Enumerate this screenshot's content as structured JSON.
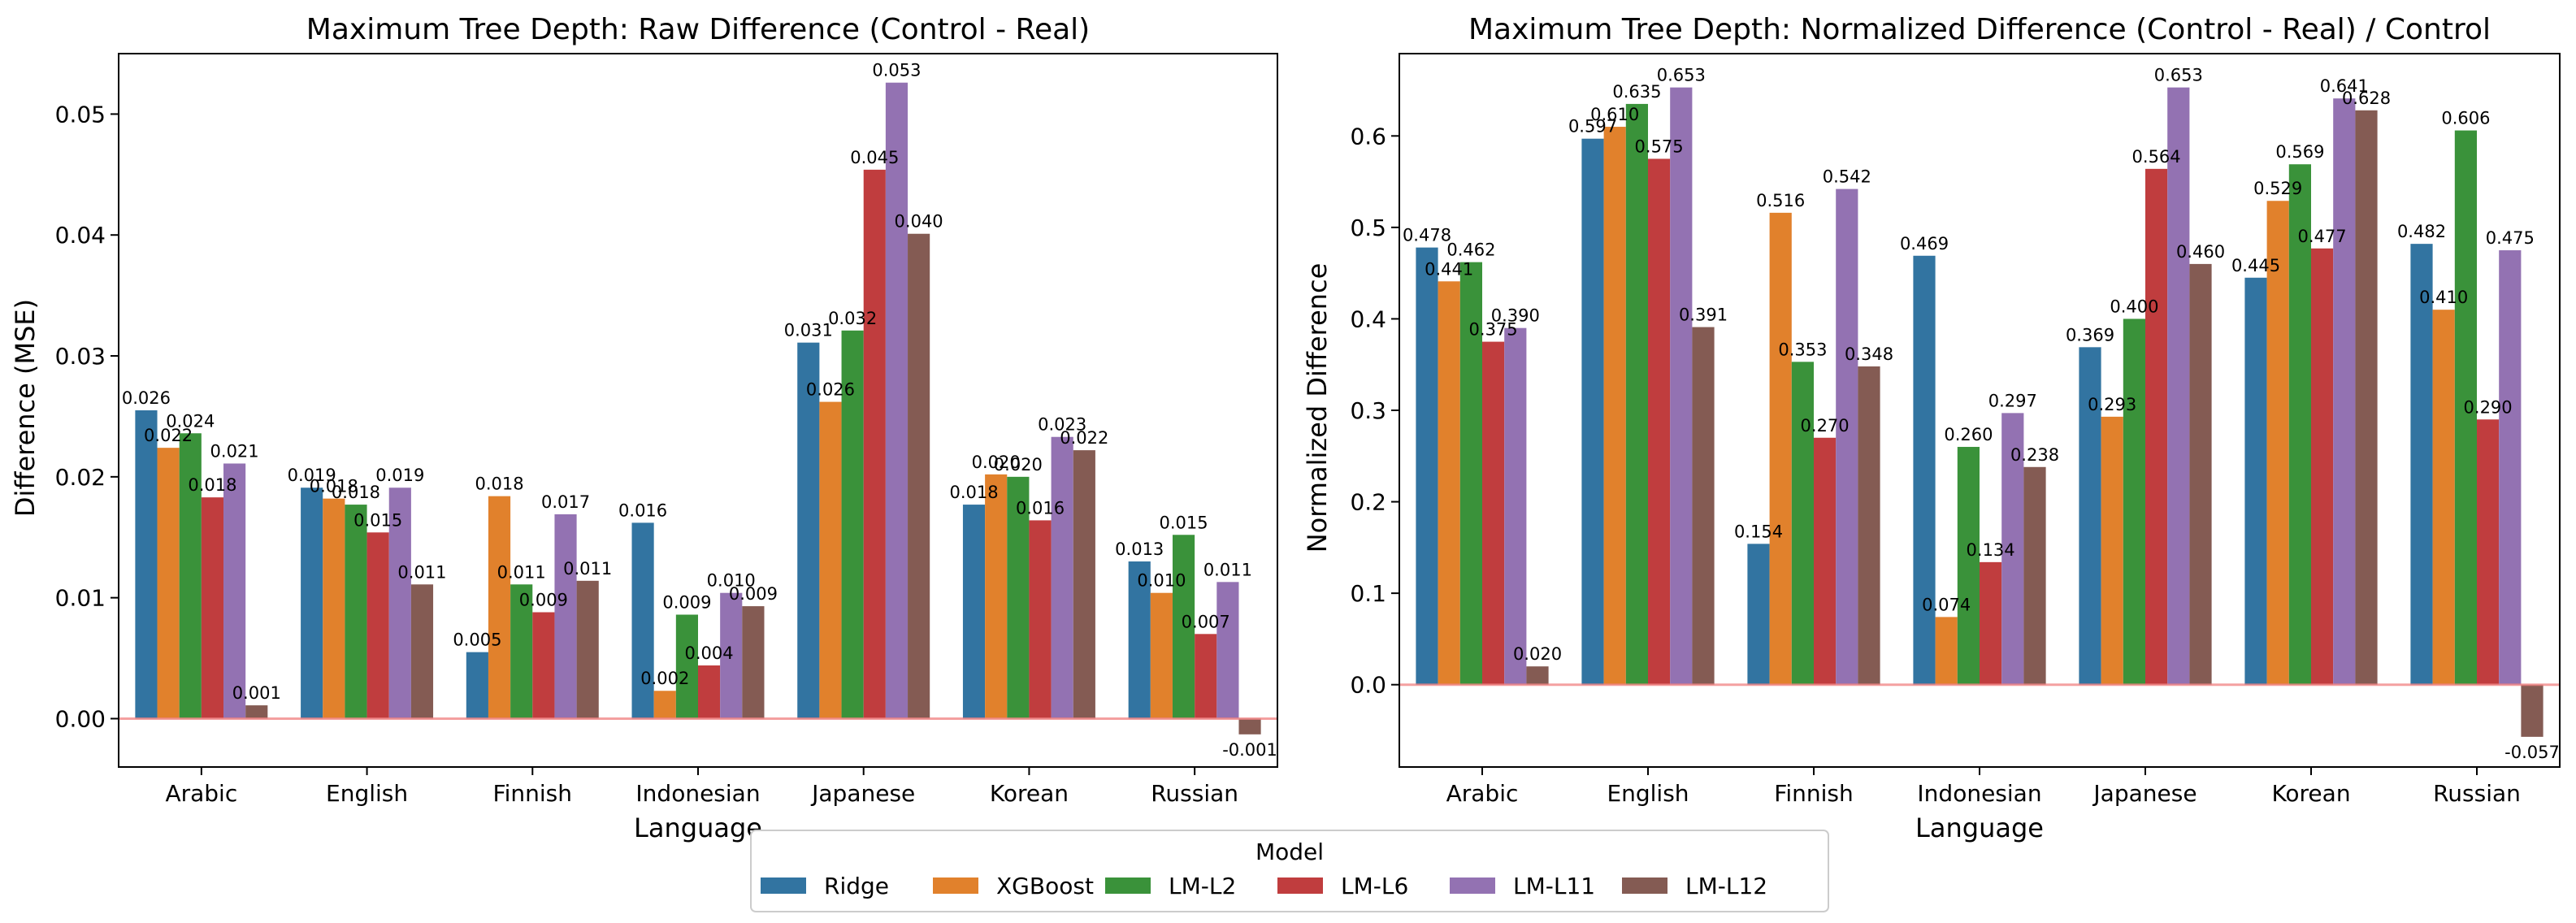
{
  "legend": {
    "title": "Model",
    "items": [
      {
        "name": "Ridge",
        "color": "#3274a1"
      },
      {
        "name": "XGBoost",
        "color": "#e1812c"
      },
      {
        "name": "LM-L2",
        "color": "#3a923a"
      },
      {
        "name": "LM-L6",
        "color": "#c03d3e"
      },
      {
        "name": "LM-L11",
        "color": "#9372b2"
      },
      {
        "name": "LM-L12",
        "color": "#845b53"
      }
    ]
  },
  "chart_data": [
    {
      "type": "bar",
      "title": "Maximum Tree Depth: Raw Difference (Control - Real)",
      "xlabel": "Language",
      "ylabel": "Difference (MSE)",
      "categories": [
        "Arabic",
        "English",
        "Finnish",
        "Indonesian",
        "Japanese",
        "Korean",
        "Russian"
      ],
      "ylim": [
        -0.004,
        0.055
      ],
      "yticks": [
        0.0,
        0.01,
        0.02,
        0.03,
        0.04,
        0.05
      ],
      "ytick_labels": [
        "0.00",
        "0.01",
        "0.02",
        "0.03",
        "0.04",
        "0.05"
      ],
      "series": [
        {
          "name": "Ridge",
          "values": [
            0.0255,
            0.0191,
            0.0055,
            0.0162,
            0.0311,
            0.0177,
            0.013
          ],
          "labels": [
            "0.026",
            "0.019",
            "0.005",
            "0.016",
            "0.031",
            "0.018",
            "0.013"
          ]
        },
        {
          "name": "XGBoost",
          "values": [
            0.0224,
            0.0182,
            0.0184,
            0.0023,
            0.0262,
            0.0202,
            0.0104
          ],
          "labels": [
            "0.022",
            "0.018",
            "0.018",
            "0.002",
            "0.026",
            "0.020",
            "0.010"
          ]
        },
        {
          "name": "LM-L2",
          "values": [
            0.0236,
            0.0177,
            0.0111,
            0.0086,
            0.0321,
            0.02,
            0.0152
          ],
          "labels": [
            "0.024",
            "0.018",
            "0.011",
            "0.009",
            "0.032",
            "0.020",
            "0.015"
          ]
        },
        {
          "name": "LM-L6",
          "values": [
            0.0183,
            0.0154,
            0.0088,
            0.0044,
            0.0454,
            0.0164,
            0.007
          ],
          "labels": [
            "0.018",
            "0.015",
            "0.009",
            "0.004",
            "0.045",
            "0.016",
            "0.007"
          ]
        },
        {
          "name": "LM-L11",
          "values": [
            0.0211,
            0.0191,
            0.0169,
            0.0104,
            0.0526,
            0.0233,
            0.0113
          ],
          "labels": [
            "0.021",
            "0.019",
            "0.017",
            "0.010",
            "0.053",
            "0.023",
            "0.011"
          ]
        },
        {
          "name": "LM-L12",
          "values": [
            0.0011,
            0.0111,
            0.0114,
            0.0093,
            0.0401,
            0.0222,
            -0.0013
          ],
          "labels": [
            "0.001",
            "0.011",
            "0.011",
            "0.009",
            "0.040",
            "0.022",
            "-0.001"
          ]
        }
      ]
    },
    {
      "type": "bar",
      "title": "Maximum Tree Depth: Normalized Difference (Control - Real) / Control",
      "xlabel": "Language",
      "ylabel": "Normalized Difference",
      "categories": [
        "Arabic",
        "English",
        "Finnish",
        "Indonesian",
        "Japanese",
        "Korean",
        "Russian"
      ],
      "ylim": [
        -0.09,
        0.69
      ],
      "yticks": [
        0.0,
        0.1,
        0.2,
        0.3,
        0.4,
        0.5,
        0.6
      ],
      "ytick_labels": [
        "0.0",
        "0.1",
        "0.2",
        "0.3",
        "0.4",
        "0.5",
        "0.6"
      ],
      "series": [
        {
          "name": "Ridge",
          "values": [
            0.478,
            0.597,
            0.154,
            0.469,
            0.369,
            0.445,
            0.482
          ],
          "labels": [
            "0.478",
            "0.597",
            "0.154",
            "0.469",
            "0.369",
            "0.445",
            "0.482"
          ]
        },
        {
          "name": "XGBoost",
          "values": [
            0.441,
            0.61,
            0.516,
            0.074,
            0.293,
            0.529,
            0.41
          ],
          "labels": [
            "0.441",
            "0.610",
            "0.516",
            "0.074",
            "0.293",
            "0.529",
            "0.410"
          ]
        },
        {
          "name": "LM-L2",
          "values": [
            0.462,
            0.635,
            0.353,
            0.26,
            0.4,
            0.569,
            0.606
          ],
          "labels": [
            "0.462",
            "0.635",
            "0.353",
            "0.260",
            "0.400",
            "0.569",
            "0.606"
          ]
        },
        {
          "name": "LM-L6",
          "values": [
            0.375,
            0.575,
            0.27,
            0.134,
            0.564,
            0.477,
            0.29
          ],
          "labels": [
            "0.375",
            "0.575",
            "0.270",
            "0.134",
            "0.564",
            "0.477",
            "0.290"
          ]
        },
        {
          "name": "LM-L11",
          "values": [
            0.39,
            0.653,
            0.542,
            0.297,
            0.653,
            0.641,
            0.475
          ],
          "labels": [
            "0.390",
            "0.653",
            "0.542",
            "0.297",
            "0.653",
            "0.641",
            "0.475"
          ]
        },
        {
          "name": "LM-L12",
          "values": [
            0.02,
            0.391,
            0.348,
            0.238,
            0.46,
            0.628,
            -0.057
          ],
          "labels": [
            "0.020",
            "0.391",
            "0.348",
            "0.238",
            "0.460",
            "0.628",
            "-0.057"
          ]
        }
      ]
    }
  ]
}
